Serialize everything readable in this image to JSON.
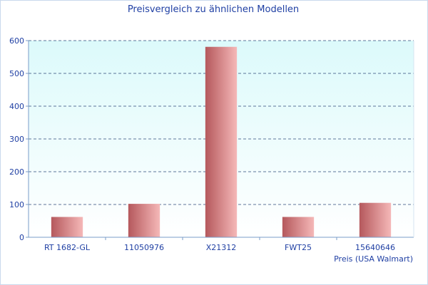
{
  "chart_data": {
    "type": "bar",
    "title": "Preisvergleich zu ähnlichen Modellen",
    "categories": [
      "RT 1682-GL",
      "11050976",
      "X21312",
      "FWT25",
      "15640646"
    ],
    "series": [
      {
        "name": "Preis (USA Walmart)",
        "values": [
          62,
          102,
          581,
          62,
          105
        ]
      }
    ],
    "xlabel": "Preis (USA Walmart)",
    "ylabel": "",
    "ylim": [
      0,
      600
    ],
    "yticks": [
      0,
      100,
      200,
      300,
      400,
      500,
      600
    ],
    "grid": true,
    "colors": {
      "bar_dark": "#b5585c",
      "bar_light": "#f5b8b8",
      "plot_bg_top": "#dcfafb",
      "plot_bg_bottom": "#ffffff",
      "grid": "#2c4a7a",
      "axis": "#7a9cc9",
      "text": "#1f3fa3"
    }
  }
}
